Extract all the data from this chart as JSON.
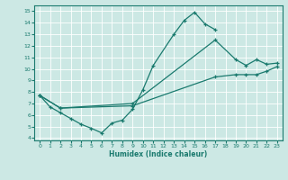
{
  "xlabel": "Humidex (Indice chaleur)",
  "xlim": [
    -0.5,
    23.5
  ],
  "ylim": [
    3.8,
    15.5
  ],
  "xticks": [
    0,
    1,
    2,
    3,
    4,
    5,
    6,
    7,
    8,
    9,
    10,
    11,
    12,
    13,
    14,
    15,
    16,
    17,
    18,
    19,
    20,
    21,
    22,
    23
  ],
  "yticks": [
    4,
    5,
    6,
    7,
    8,
    9,
    10,
    11,
    12,
    13,
    14,
    15
  ],
  "bg_color": "#cce8e4",
  "line_color": "#1a7a6e",
  "line1_x": [
    0,
    1,
    2,
    3,
    4,
    5,
    6,
    7,
    8,
    9,
    10,
    11,
    13,
    14,
    15,
    16,
    17
  ],
  "line1_y": [
    7.7,
    6.7,
    6.2,
    5.7,
    5.2,
    4.85,
    4.45,
    5.3,
    5.55,
    6.5,
    8.2,
    10.3,
    13.0,
    14.2,
    14.9,
    13.9,
    13.4
  ],
  "line2_x": [
    0,
    2,
    9,
    17,
    19,
    20,
    21,
    22,
    23
  ],
  "line2_y": [
    7.7,
    6.6,
    7.0,
    12.5,
    10.8,
    10.3,
    10.8,
    10.4,
    10.5
  ],
  "line3_x": [
    0,
    2,
    9,
    17,
    19,
    20,
    21,
    22,
    23
  ],
  "line3_y": [
    7.7,
    6.6,
    6.8,
    9.3,
    9.5,
    9.5,
    9.5,
    9.8,
    10.2
  ]
}
